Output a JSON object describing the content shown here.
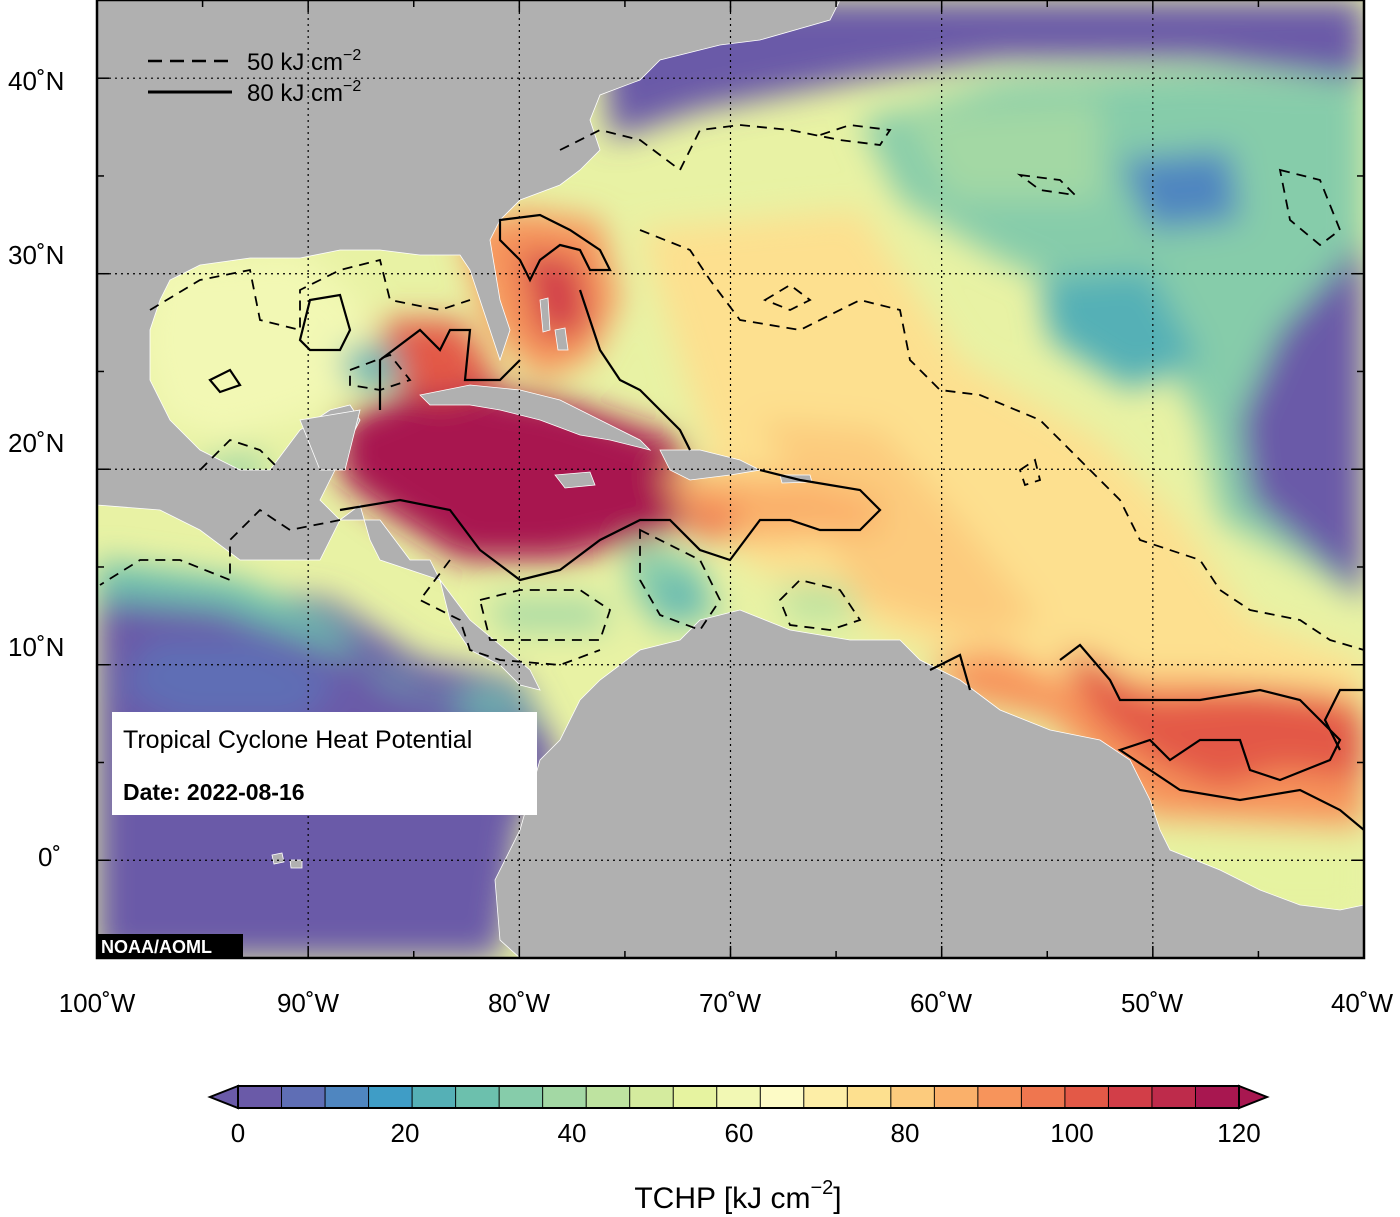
{
  "map": {
    "lon_labels": [
      "100˚W",
      "90˚W",
      "80˚W",
      "70˚W",
      "60˚W",
      "50˚W",
      "40˚W"
    ],
    "lat_labels": [
      "40˚N",
      "30˚N",
      "20˚N",
      "10˚N",
      "0˚"
    ],
    "extent": {
      "lon_min": -100,
      "lon_max": -40,
      "lat_min": -5,
      "lat_max": 44
    },
    "land_color": "#b0b0b0",
    "gridlines": "dotted"
  },
  "legend": {
    "dashed_label": "50 kJ cm",
    "solid_label": "80 kJ cm",
    "exponent": "−2"
  },
  "info_box": {
    "title": "Tropical Cyclone Heat Potential",
    "date": "Date: 2022-08-16"
  },
  "credit": "NOAA/AOML",
  "colorbar": {
    "tick_labels": [
      "0",
      "20",
      "40",
      "60",
      "80",
      "100",
      "120"
    ],
    "title": "TCHP [kJ cm",
    "title_exponent": "−2",
    "title_end": "]",
    "colors": [
      "#6a5aa8",
      "#5f6eb5",
      "#4f86c0",
      "#3f9dc6",
      "#55b0b6",
      "#6cc0ad",
      "#86ccaa",
      "#a3d8a4",
      "#bee3a0",
      "#d4eb9e",
      "#e6f3a0",
      "#f2f8b4",
      "#fdfbc6",
      "#fdeea7",
      "#fde08f",
      "#fccb7d",
      "#fab06a",
      "#f7945b",
      "#ef764f",
      "#e35947",
      "#d23e48",
      "#be2b4b",
      "#a81750"
    ]
  },
  "chart_data": {
    "type": "heatmap",
    "variable": "TCHP",
    "units": "kJ cm^-2",
    "range": [
      0,
      120
    ],
    "contour_levels": [
      50,
      80
    ],
    "grid_lon": [
      -100,
      -95,
      -90,
      -85,
      -80,
      -75,
      -70,
      -65,
      -60,
      -55,
      -50,
      -45,
      -40
    ],
    "grid_lat": [
      40,
      35,
      30,
      25,
      20,
      15,
      10,
      5,
      0
    ],
    "values": [
      [
        0,
        0,
        0,
        0,
        0,
        0,
        35,
        30,
        30,
        25,
        20,
        15,
        10
      ],
      [
        0,
        0,
        0,
        0,
        0,
        55,
        45,
        40,
        35,
        30,
        15,
        25,
        20
      ],
      [
        0,
        0,
        0,
        60,
        85,
        70,
        55,
        45,
        40,
        35,
        30,
        20,
        15
      ],
      [
        55,
        60,
        85,
        100,
        95,
        70,
        62,
        55,
        50,
        40,
        35,
        20,
        10
      ],
      [
        55,
        45,
        50,
        120,
        120,
        95,
        75,
        65,
        60,
        55,
        45,
        30,
        15
      ],
      [
        35,
        40,
        45,
        70,
        120,
        85,
        78,
        72,
        62,
        58,
        55,
        40,
        30
      ],
      [
        15,
        20,
        30,
        45,
        45,
        35,
        40,
        40,
        70,
        80,
        65,
        60,
        50
      ],
      [
        10,
        15,
        30,
        0,
        0,
        0,
        0,
        0,
        0,
        75,
        90,
        100,
        95
      ],
      [
        0,
        0,
        0,
        0,
        0,
        0,
        0,
        0,
        0,
        0,
        60,
        55,
        50
      ]
    ]
  }
}
